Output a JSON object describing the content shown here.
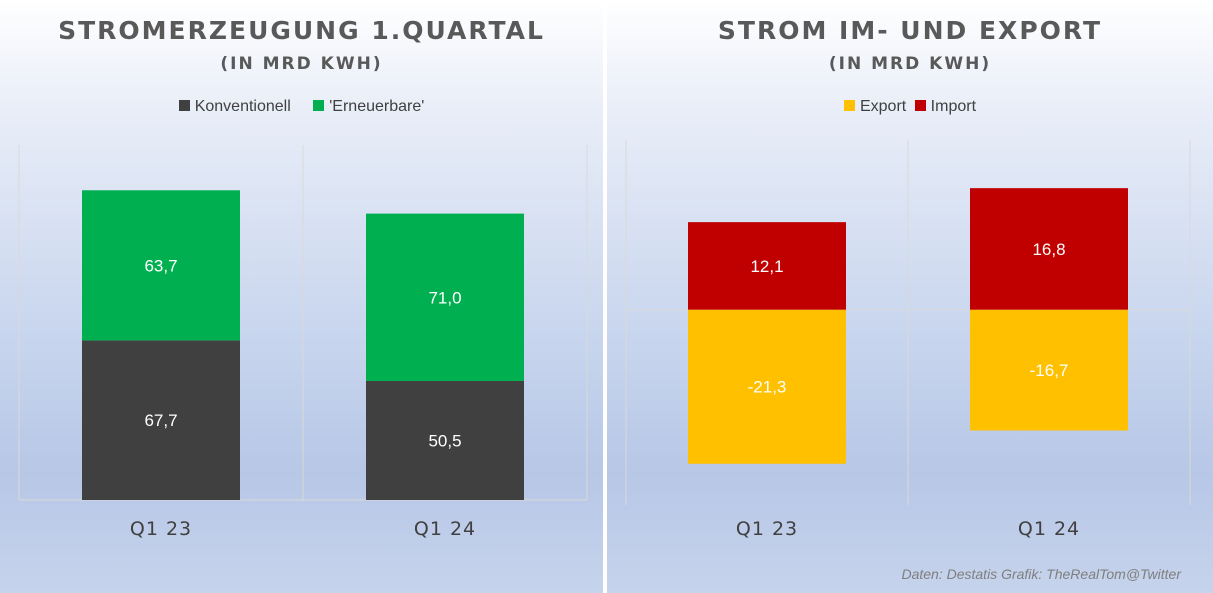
{
  "chart_data": [
    {
      "type": "bar",
      "stacked": true,
      "title": "STROMERZEUGUNG 1.QUARTAL",
      "subtitle": "(IN MRD KWH)",
      "categories": [
        "Q1 23",
        "Q1 24"
      ],
      "series": [
        {
          "name": "Konventionell",
          "values": [
            67.7,
            50.5
          ],
          "labels": [
            "67,7",
            "50,5"
          ],
          "color": "#404040"
        },
        {
          "name": "'Erneuerbare'",
          "values": [
            63.7,
            71.0
          ],
          "labels": [
            "63,7",
            "71,0"
          ],
          "color": "#00b050"
        }
      ],
      "ylim": [
        0,
        140
      ],
      "legend": "top",
      "grid": false
    },
    {
      "type": "bar",
      "stacked": true,
      "title": "STROM IM- UND EXPORT",
      "subtitle": "(IN MRD KWH)",
      "categories": [
        "Q1 23",
        "Q1 24"
      ],
      "series": [
        {
          "name": "Export",
          "values": [
            -21.3,
            -16.7
          ],
          "labels": [
            "-21,3",
            "-16,7"
          ],
          "color": "#ffc000"
        },
        {
          "name": "Import",
          "values": [
            12.1,
            16.8
          ],
          "labels": [
            "12,1",
            "16,8"
          ],
          "color": "#c00000"
        }
      ],
      "ylim": [
        -27,
        20
      ],
      "legend": "top",
      "grid": false
    }
  ],
  "credit": "Daten: Destatis  Grafik: TheRealTom@Twitter",
  "colors": {
    "title_text": "#595959",
    "tick_text": "#404040",
    "value_label": "#ffffff",
    "axis_line": "#d9d9d9"
  }
}
